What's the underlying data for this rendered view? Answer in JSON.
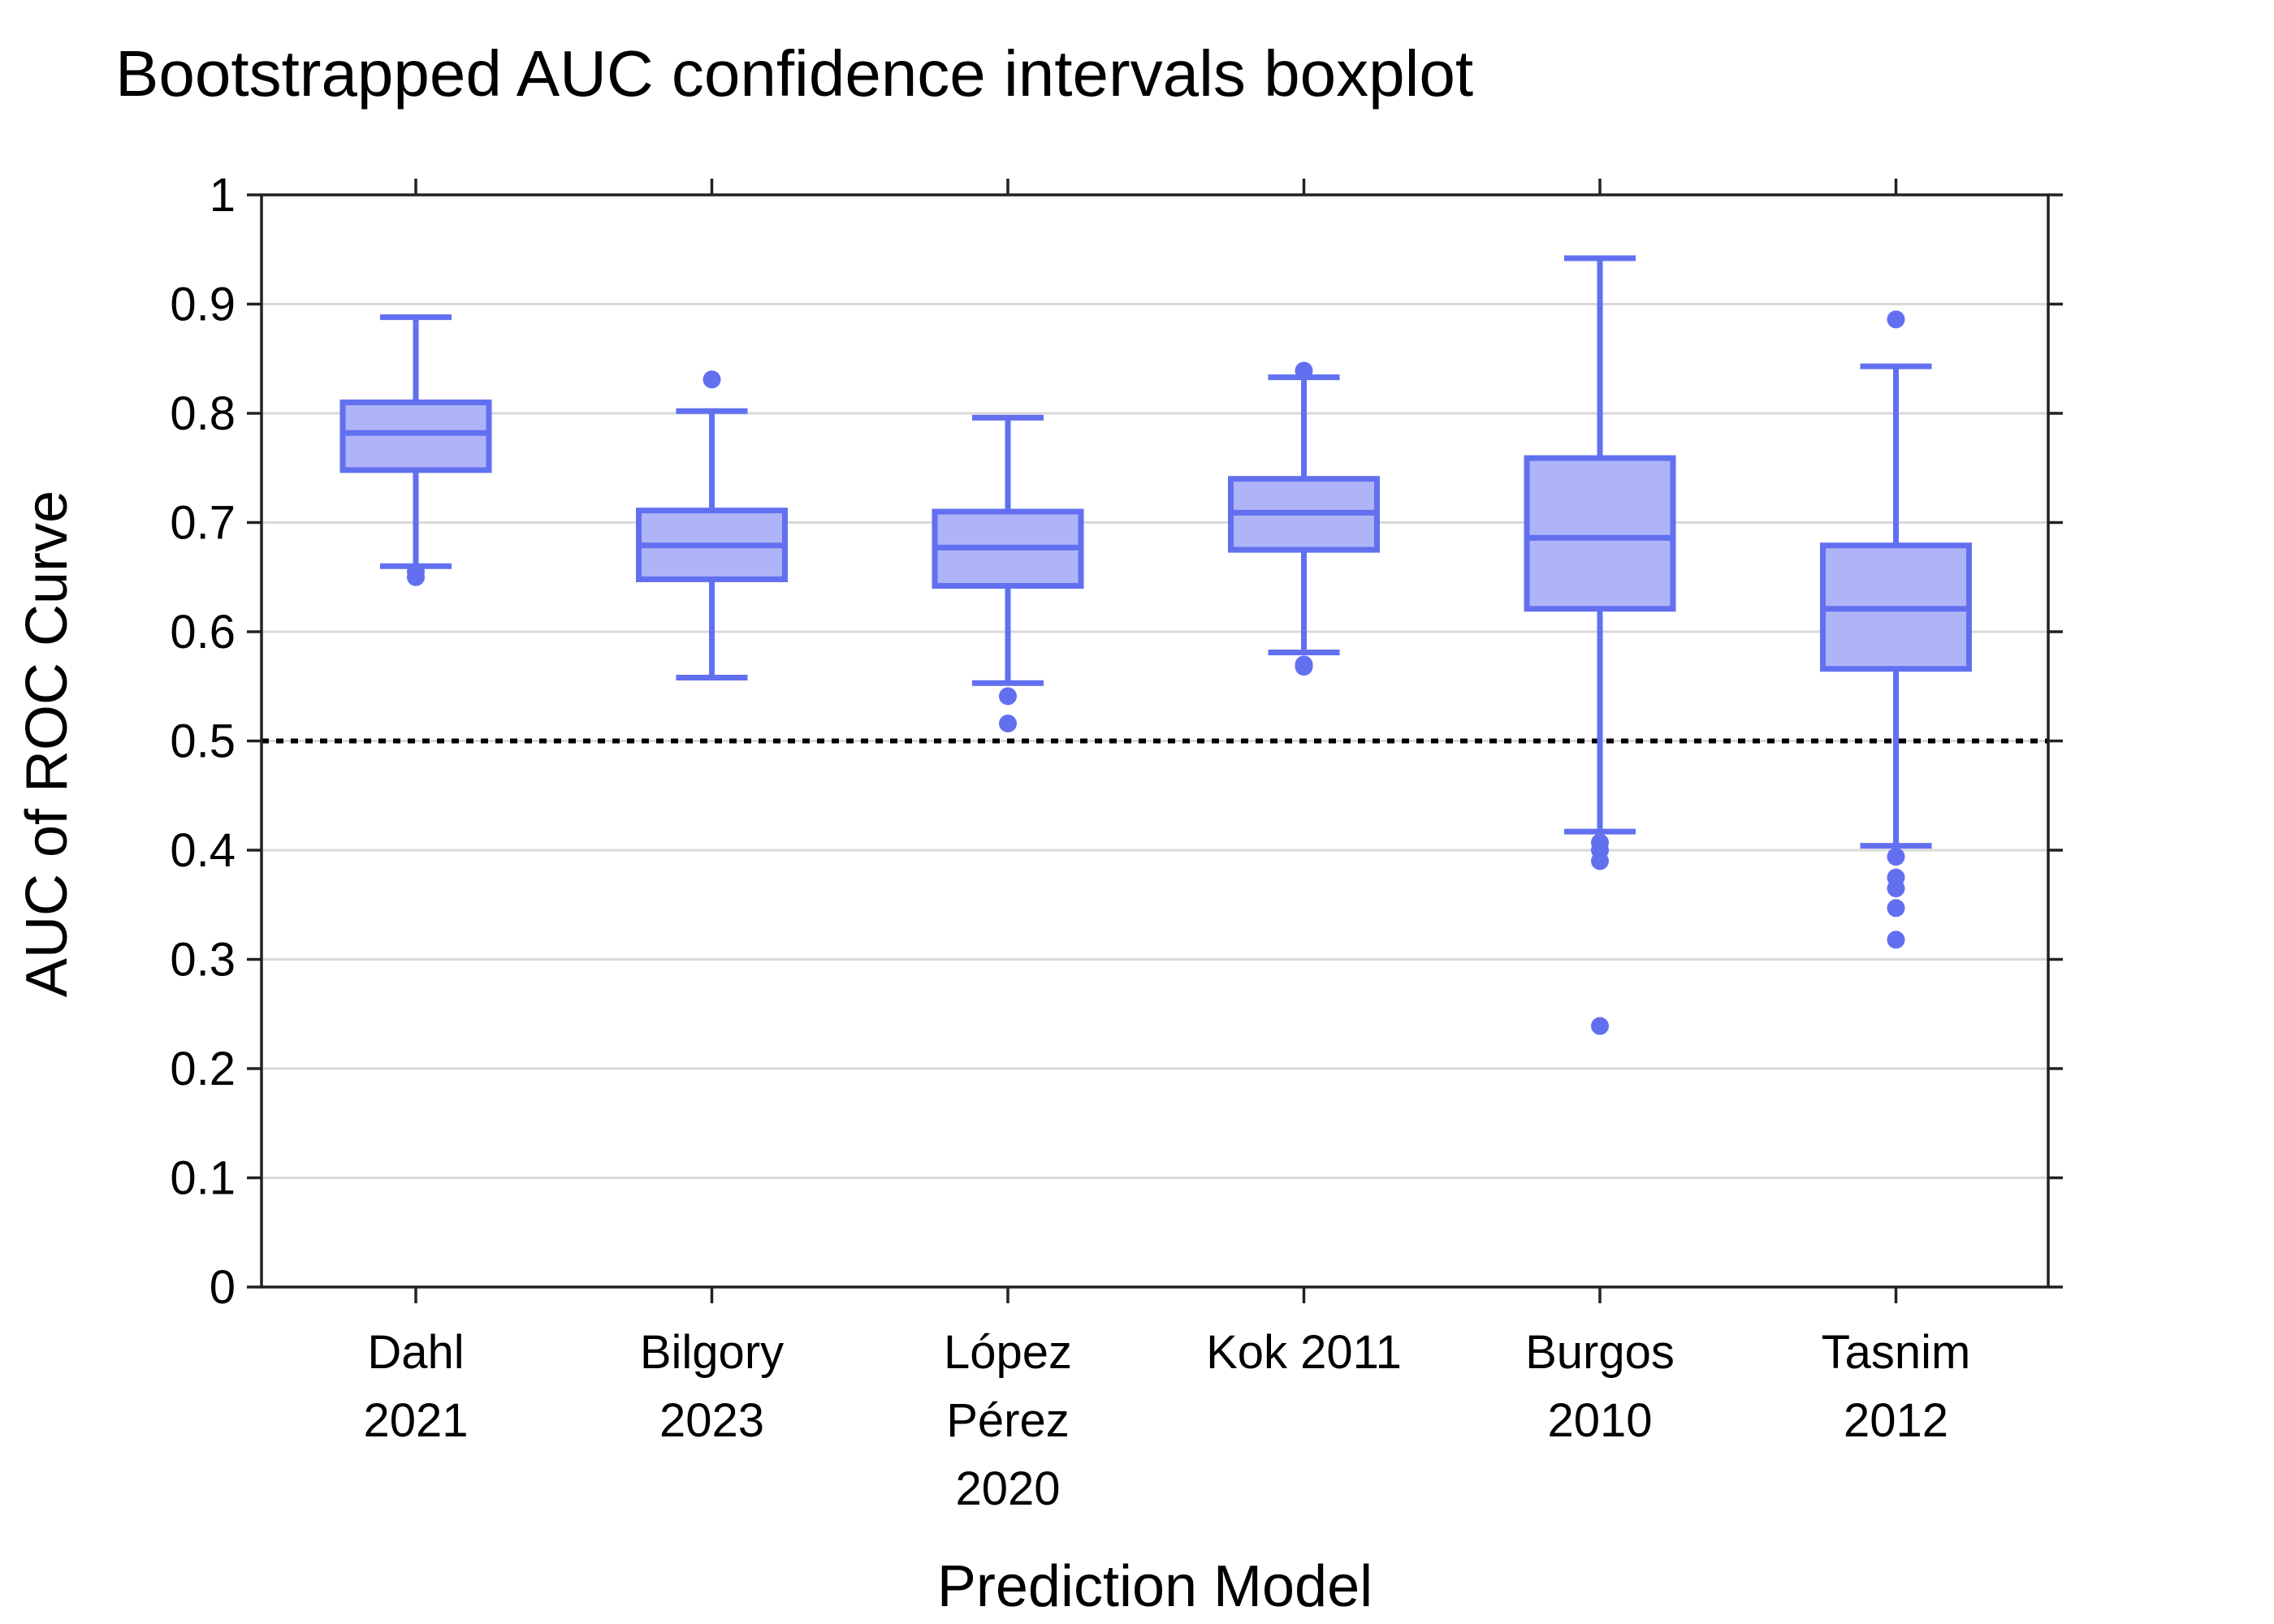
{
  "chart_data": {
    "type": "box",
    "title": "Bootstrapped AUC confidence intervals boxplot",
    "xlabel": "Prediction Model",
    "ylabel": "AUC of ROC Curve",
    "ylim": [
      0,
      1
    ],
    "yticks": [
      "0",
      "0.1",
      "0.2",
      "0.3",
      "0.4",
      "0.5",
      "0.6",
      "0.7",
      "0.8",
      "0.9",
      "1"
    ],
    "grid": true,
    "reference_line": {
      "y": 0.5,
      "style": "dotted"
    },
    "color": "#6270f0",
    "fill_color": "#aeb4f7",
    "categories": [
      [
        "Dahl",
        "2021"
      ],
      [
        "Bilgory",
        "2023"
      ],
      [
        "López",
        "Pérez",
        "2020"
      ],
      [
        "Kok 2011"
      ],
      [
        "Burgos",
        "2010"
      ],
      [
        "Tasnim",
        "2012"
      ]
    ],
    "boxes": [
      {
        "whisker_low": 0.66,
        "q1": 0.748,
        "median": 0.782,
        "q3": 0.81,
        "whisker_high": 0.888,
        "outliers": [
          0.655,
          0.65
        ]
      },
      {
        "whisker_low": 0.558,
        "q1": 0.648,
        "median": 0.679,
        "q3": 0.711,
        "whisker_high": 0.802,
        "outliers": [
          0.831
        ]
      },
      {
        "whisker_low": 0.553,
        "q1": 0.642,
        "median": 0.677,
        "q3": 0.71,
        "whisker_high": 0.796,
        "outliers": [
          0.541,
          0.516
        ]
      },
      {
        "whisker_low": 0.581,
        "q1": 0.675,
        "median": 0.709,
        "q3": 0.74,
        "whisker_high": 0.833,
        "outliers": [
          0.839,
          0.57,
          0.568
        ]
      },
      {
        "whisker_low": 0.417,
        "q1": 0.621,
        "median": 0.686,
        "q3": 0.759,
        "whisker_high": 0.942,
        "outliers": [
          0.407,
          0.4,
          0.39,
          0.239
        ]
      },
      {
        "whisker_low": 0.404,
        "q1": 0.566,
        "median": 0.621,
        "q3": 0.679,
        "whisker_high": 0.843,
        "outliers": [
          0.886,
          0.394,
          0.375,
          0.365,
          0.347,
          0.318
        ]
      }
    ]
  }
}
